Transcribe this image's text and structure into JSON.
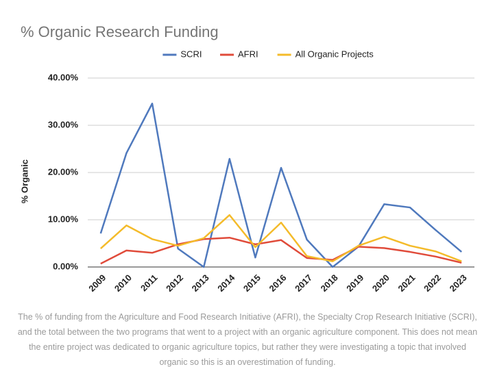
{
  "chart_data": {
    "type": "line",
    "title": "% Organic Research Funding",
    "y_label": "% Organic",
    "categories": [
      "2009",
      "2010",
      "2011",
      "2012",
      "2013",
      "2014",
      "2015",
      "2016",
      "2017",
      "2018",
      "2019",
      "2020",
      "2021",
      "2022",
      "2023"
    ],
    "series": [
      {
        "name": "SCRI",
        "color": "#4f79bd",
        "values": [
          7.1,
          24.1,
          34.6,
          3.9,
          0,
          22.9,
          2.0,
          21.0,
          5.8,
          0,
          4.3,
          13.3,
          12.6,
          7.8,
          3.2
        ]
      },
      {
        "name": "AFRI",
        "color": "#e04b3a",
        "values": [
          0.7,
          3.5,
          3.0,
          4.8,
          5.9,
          6.2,
          4.8,
          5.7,
          1.9,
          1.5,
          4.3,
          4.0,
          3.2,
          2.2,
          0.9
        ]
      },
      {
        "name": "All Organic Projects",
        "color": "#f4bb2a",
        "values": [
          3.9,
          8.8,
          5.9,
          4.5,
          6.1,
          11.0,
          4.2,
          9.4,
          2.3,
          1.2,
          4.5,
          6.4,
          4.5,
          3.3,
          1.2
        ]
      }
    ],
    "ylim": [
      0,
      40
    ],
    "yticks": [
      {
        "value": 0,
        "label": "0.00%"
      },
      {
        "value": 10,
        "label": "10.00%"
      },
      {
        "value": 20,
        "label": "20.00%"
      },
      {
        "value": 30,
        "label": "30.00%"
      },
      {
        "value": 40,
        "label": "40.00%"
      }
    ],
    "grid": true,
    "legend": "top",
    "caption": "The % of funding from the Agriculture and Food Research Initiative (AFRI), the Specialty Crop Research Initiative (SCRI), and the total between the two programs that went to a project with an organic agriculture component. This does not mean the entire project was dedicated to organic agriculture topics, but rather they were investigating a topic that involved organic so this is an overestimation of funding."
  }
}
